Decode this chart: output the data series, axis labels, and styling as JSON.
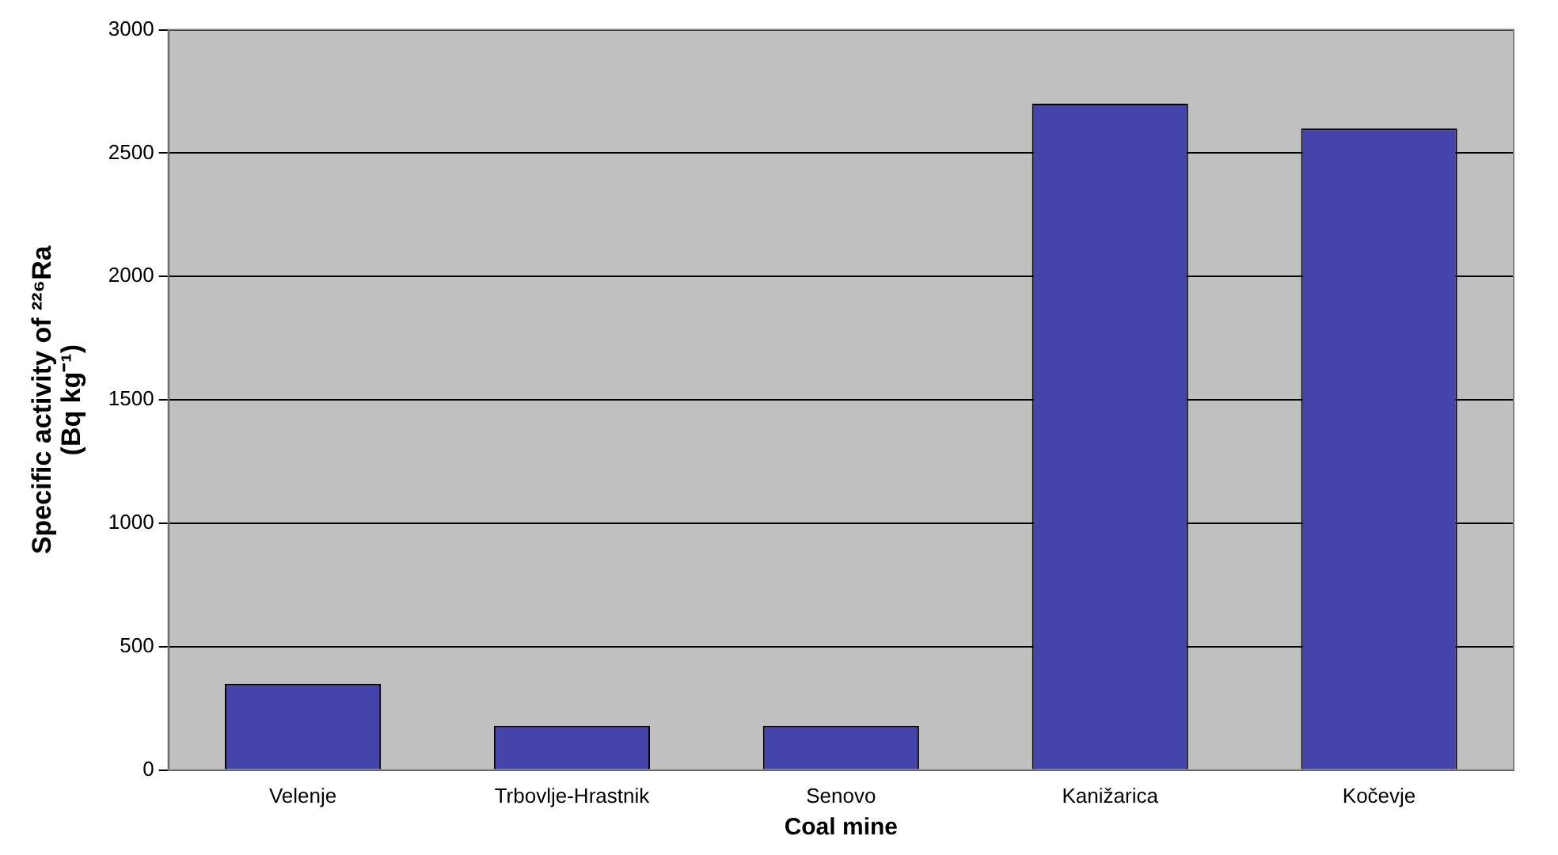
{
  "chart_data": {
    "type": "bar",
    "xlabel": "Coal mine",
    "ylabel": "Specific activity of ²²⁶Ra\n(Bq kg⁻¹)",
    "categories": [
      "Velenje",
      "Trbovlje-Hrastnik",
      "Senovo",
      "Kanižarica",
      "Kočevje"
    ],
    "values": [
      350,
      180,
      180,
      2700,
      2600
    ],
    "color": "#4444aa",
    "ylim": [
      0,
      3000
    ],
    "yticks": [
      0,
      500,
      1000,
      1500,
      2000,
      2500,
      3000
    ],
    "grid": "y"
  }
}
